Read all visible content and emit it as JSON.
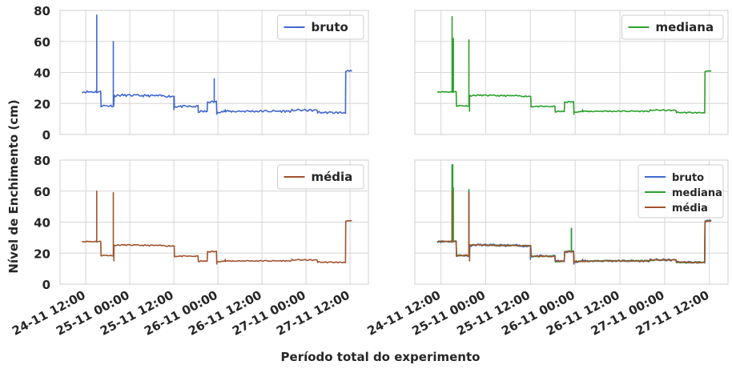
{
  "figure": {
    "ylabel": "Nível de Enchimento (cm)",
    "xlabel": "Período total do experimento"
  },
  "x_ticks": [
    "24-11 12:00",
    "25-11 00:00",
    "25-11 12:00",
    "26-11 00:00",
    "26-11 12:00",
    "27-11 00:00",
    "27-11 12:00"
  ],
  "y_ticks": [
    "0",
    "20",
    "40",
    "60",
    "80"
  ],
  "colors": {
    "bruto": "#4267d1",
    "mediana": "#2ca02c",
    "media": "#a0522d",
    "grid": "#d6d6d6"
  },
  "chart_data": [
    {
      "type": "line",
      "panel": "top-left",
      "legend_position": "top-right",
      "grid": true,
      "xlim": [
        "2024-11-24 05:00",
        "2024-11-27 17:00"
      ],
      "ylim": [
        0,
        80
      ],
      "series": [
        {
          "name": "bruto",
          "color": "#4267d1",
          "peaks": "raw"
        }
      ]
    },
    {
      "type": "line",
      "panel": "top-right",
      "legend_position": "top-right",
      "grid": true,
      "xlim": [
        "2024-11-24 05:00",
        "2024-11-27 17:00"
      ],
      "ylim": [
        0,
        80
      ],
      "series": [
        {
          "name": "mediana",
          "color": "#2ca02c",
          "peaks": "smoothed"
        }
      ]
    },
    {
      "type": "line",
      "panel": "bottom-left",
      "legend_position": "top-right",
      "grid": true,
      "xlim": [
        "2024-11-24 05:00",
        "2024-11-27 17:00"
      ],
      "ylim": [
        0,
        80
      ],
      "series": [
        {
          "name": "média",
          "color": "#a0522d",
          "peaks": "smoothed"
        }
      ]
    },
    {
      "type": "line",
      "panel": "bottom-right",
      "legend_position": "top-right",
      "grid": true,
      "xlim": [
        "2024-11-24 05:00",
        "2024-11-27 17:00"
      ],
      "ylim": [
        0,
        80
      ],
      "series": [
        {
          "name": "bruto",
          "color": "#4267d1",
          "peaks": "raw"
        },
        {
          "name": "mediana",
          "color": "#2ca02c",
          "peaks": "mixed"
        },
        {
          "name": "média",
          "color": "#a0522d",
          "peaks": "smoothed"
        }
      ]
    }
  ],
  "base_profile": [
    [
      "2024-11-24 11:00",
      27.5
    ],
    [
      "2024-11-24 16:00",
      27.5
    ],
    [
      "2024-11-24 16:10",
      18.5
    ],
    [
      "2024-11-24 19:30",
      18.5
    ],
    [
      "2024-11-24 19:45",
      25.0
    ],
    [
      "2024-11-24 22:00",
      25.3
    ],
    [
      "2024-11-25 04:00",
      25.0
    ],
    [
      "2024-11-25 08:00",
      24.9
    ],
    [
      "2024-11-25 12:00",
      24.6
    ],
    [
      "2024-11-25 12:10",
      18.0
    ],
    [
      "2024-11-25 18:30",
      18.0
    ],
    [
      "2024-11-25 18:40",
      14.8
    ],
    [
      "2024-11-25 21:00",
      14.8
    ],
    [
      "2024-11-25 21:10",
      21.0
    ],
    [
      "2024-11-25 23:30",
      21.0
    ],
    [
      "2024-11-25 23:40",
      14.7
    ],
    [
      "2024-11-26 06:00",
      15.0
    ],
    [
      "2024-11-26 12:00",
      15.0
    ],
    [
      "2024-11-26 20:00",
      15.0
    ],
    [
      "2024-11-26 20:10",
      15.7
    ],
    [
      "2024-11-27 03:00",
      15.5
    ],
    [
      "2024-11-27 03:10",
      14.2
    ],
    [
      "2024-11-27 10:00",
      14.0
    ],
    [
      "2024-11-27 10:40",
      14.2
    ],
    [
      "2024-11-27 10:50",
      40.5
    ],
    [
      "2024-11-27 12:30",
      40.8
    ]
  ],
  "spikes_raw": [
    [
      "2024-11-24 15:00",
      77
    ],
    [
      "2024-11-24 19:30",
      60
    ],
    [
      "2024-11-25 12:00",
      16
    ],
    [
      "2024-11-25 23:00",
      36
    ],
    [
      "2024-11-25 23:40",
      13
    ],
    [
      "2024-11-26 02:00",
      16
    ]
  ],
  "spikes_median": [
    [
      "2024-11-24 15:00",
      76
    ],
    [
      "2024-11-24 15:20",
      62
    ],
    [
      "2024-11-24 19:30",
      61
    ],
    [
      "2024-11-24 19:40",
      15
    ],
    [
      "2024-11-25 23:40",
      13
    ],
    [
      "2024-11-26 02:00",
      16
    ]
  ],
  "spikes_mean": [
    [
      "2024-11-24 15:00",
      60
    ],
    [
      "2024-11-24 19:30",
      59
    ],
    [
      "2024-11-24 19:40",
      15
    ],
    [
      "2024-11-25 23:40",
      13
    ],
    [
      "2024-11-26 02:00",
      16
    ]
  ],
  "spikes_combined_extra": [
    [
      "2024-11-24 15:10",
      77
    ],
    [
      "2024-11-24 19:30",
      61
    ],
    [
      "2024-11-25 23:00",
      36
    ]
  ]
}
